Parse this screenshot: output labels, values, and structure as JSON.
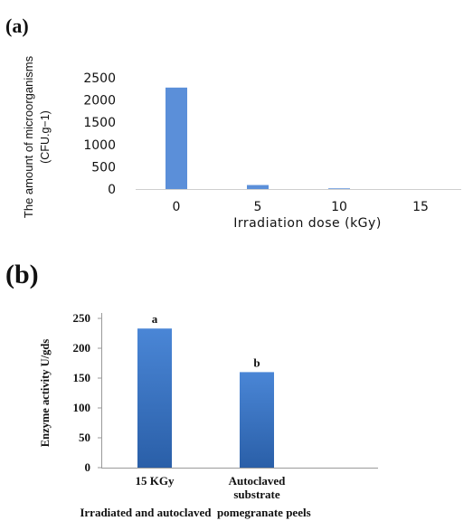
{
  "panel_labels": [
    "(a)",
    "(b)"
  ],
  "colors": {
    "bar_a": "#5B8FD9",
    "bar_b_light": "#4A86D6",
    "bar_b_dark": "#2A5FA8",
    "axis": "#222222",
    "text": "#111111"
  },
  "chart_data": [
    {
      "type": "bar",
      "categories": [
        "0",
        "5",
        "10",
        "15"
      ],
      "values": [
        2280,
        90,
        15,
        0
      ],
      "xlabel": "Irradiation dose (kGy)",
      "ylabel": "The amount of microorganisms (CFU.g−1)",
      "ylabel_lines": [
        "The amount of microorganisms",
        "(CFU.g−1)"
      ],
      "yticks": [
        0,
        500,
        1000,
        1500,
        2000,
        2500
      ],
      "ylim": [
        0,
        2500
      ],
      "grid": false
    },
    {
      "type": "bar",
      "categories": [
        "15 KGy",
        "Autoclaved substrate"
      ],
      "category_lines": [
        [
          "15 KGy"
        ],
        [
          "Autoclaved",
          "substrate"
        ]
      ],
      "values": [
        233,
        160
      ],
      "data_labels": [
        "a",
        "b"
      ],
      "xlabel": "Irradiated and autoclaved  pomegranate peels",
      "ylabel": "Enzyme activity U/gds",
      "yticks": [
        0,
        50,
        100,
        150,
        200,
        250
      ],
      "ylim": [
        0,
        250
      ],
      "grid": false
    }
  ]
}
